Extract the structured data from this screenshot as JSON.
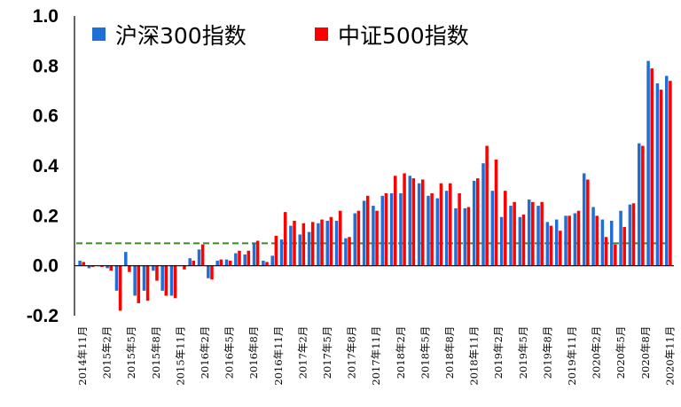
{
  "chart_data": {
    "type": "bar",
    "ylim": [
      -0.2,
      1.0
    ],
    "yticks": [
      "1.0",
      "0.8",
      "0.6",
      "0.4",
      "0.2",
      "0.0",
      "-0.2"
    ],
    "x_labels": [
      "2014年11月",
      "2015年2月",
      "2015年5月",
      "2015年8月",
      "2015年11月",
      "2016年2月",
      "2016年5月",
      "2016年8月",
      "2016年11月",
      "2017年2月",
      "2017年5月",
      "2017年8月",
      "2017年11月",
      "2018年2月",
      "2018年5月",
      "2018年8月",
      "2018年11月",
      "2019年2月",
      "2019年5月",
      "2019年8月",
      "2019年11月",
      "2020年2月",
      "2020年5月",
      "2020年8月",
      "2020年11月"
    ],
    "reference_line": 0.09,
    "legend_position": "top-left",
    "series": [
      {
        "name": "沪深300指数",
        "color": "#1f6fd6",
        "values": [
          0.02,
          -0.01,
          0.0,
          -0.01,
          -0.1,
          0.055,
          -0.12,
          -0.1,
          -0.02,
          -0.1,
          -0.12,
          0.0,
          0.03,
          0.065,
          -0.05,
          0.02,
          0.025,
          0.05,
          0.045,
          0.09,
          0.02,
          0.04,
          0.105,
          0.16,
          0.125,
          0.135,
          0.17,
          0.18,
          0.18,
          0.11,
          0.21,
          0.26,
          0.24,
          0.28,
          0.29,
          0.29,
          0.36,
          0.33,
          0.28,
          0.27,
          0.3,
          0.23,
          0.23,
          0.34,
          0.41,
          0.3,
          0.195,
          0.24,
          0.195,
          0.265,
          0.24,
          0.175,
          0.185,
          0.2,
          0.21,
          0.37,
          0.235,
          0.185,
          0.18,
          0.22,
          0.245,
          0.49,
          0.82,
          0.73,
          0.76
        ]
      },
      {
        "name": "中证500指数",
        "color": "#ff0000",
        "values": [
          0.015,
          -0.005,
          -0.005,
          -0.02,
          -0.18,
          -0.025,
          -0.15,
          -0.14,
          -0.06,
          -0.12,
          -0.13,
          -0.015,
          0.02,
          0.085,
          -0.055,
          0.025,
          0.02,
          0.06,
          0.06,
          0.1,
          0.015,
          0.12,
          0.215,
          0.18,
          0.17,
          0.175,
          0.185,
          0.195,
          0.22,
          0.115,
          0.22,
          0.28,
          0.22,
          0.29,
          0.36,
          0.37,
          0.35,
          0.345,
          0.29,
          0.33,
          0.33,
          0.29,
          0.235,
          0.35,
          0.48,
          0.425,
          0.3,
          0.255,
          0.205,
          0.255,
          0.255,
          0.16,
          0.14,
          0.2,
          0.22,
          0.345,
          0.2,
          0.115,
          0.085,
          0.155,
          0.25,
          0.48,
          0.79,
          0.705,
          0.74
        ]
      }
    ]
  }
}
